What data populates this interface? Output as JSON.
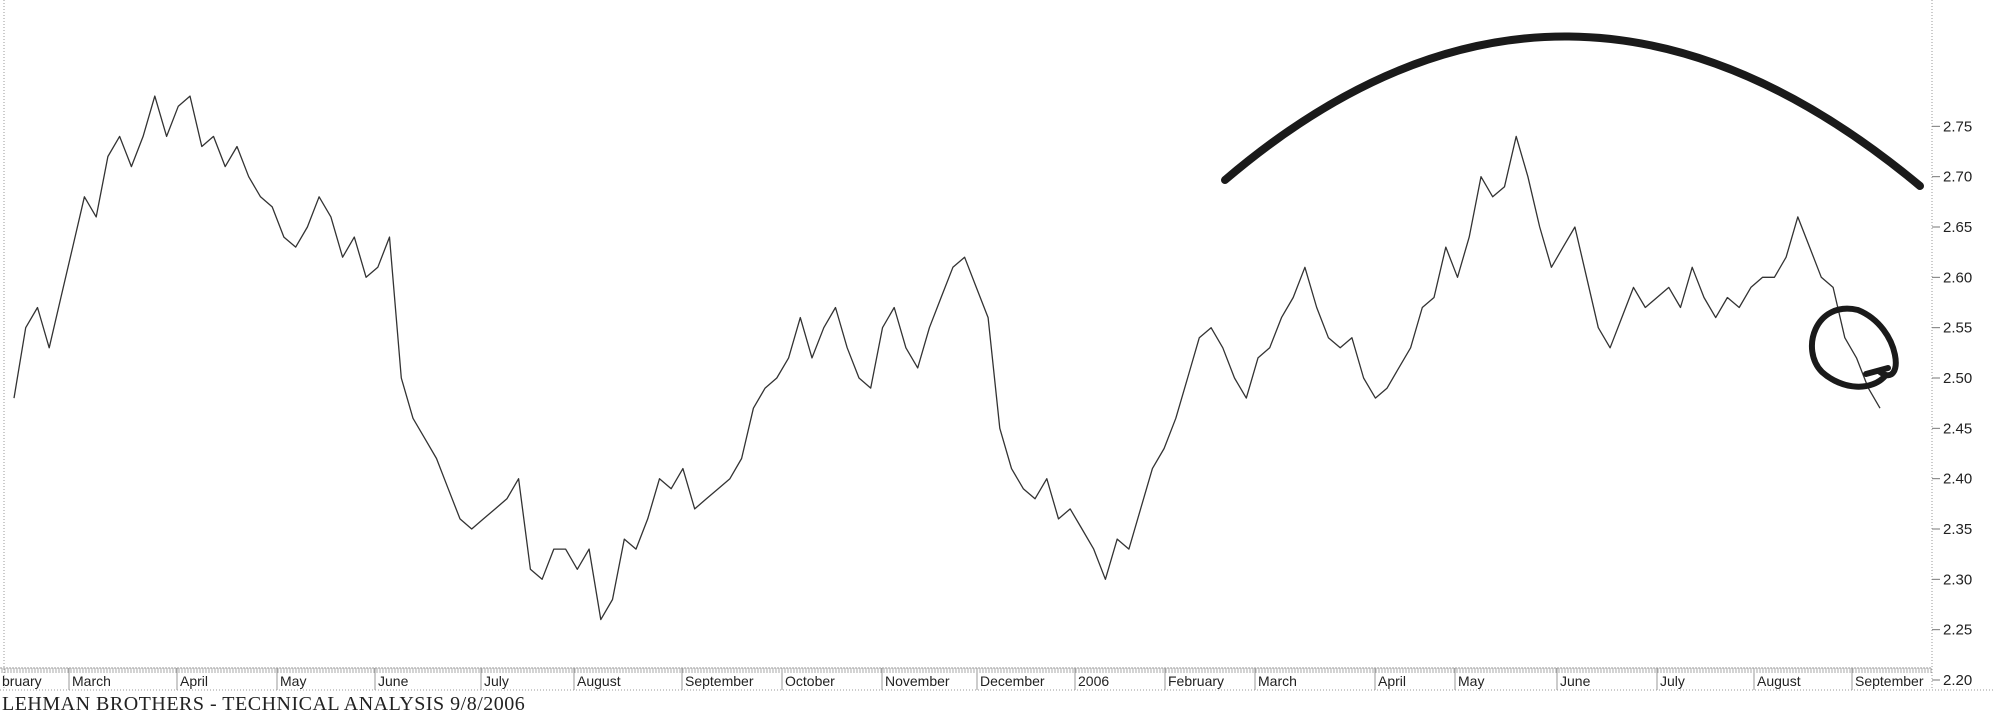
{
  "footer_text": "LEHMAN BROTHERS - TECHNICAL ANALYSIS 9/8/2006",
  "chart_data": {
    "type": "line",
    "title": "",
    "xlabel": "",
    "ylabel": "",
    "ylim": [
      2.2,
      2.8
    ],
    "y_axis_position": "right",
    "grid": false,
    "y_ticks": [
      "2.20",
      "2.25",
      "2.30",
      "2.35",
      "2.40",
      "2.45",
      "2.50",
      "2.55",
      "2.60",
      "2.65",
      "2.70",
      "2.75"
    ],
    "x_labels": [
      "bruary",
      "March",
      "April",
      "May",
      "June",
      "July",
      "August",
      "September",
      "October",
      "November",
      "December",
      "2006",
      "February",
      "March",
      "April",
      "May",
      "June",
      "July",
      "August",
      "September"
    ],
    "line_color": "#333333",
    "annotation_color": "#1a1a1a",
    "series": [
      {
        "values": [
          2.48,
          2.55,
          2.57,
          2.53,
          2.58,
          2.63,
          2.68,
          2.66,
          2.72,
          2.74,
          2.71,
          2.74,
          2.78,
          2.74,
          2.77,
          2.78,
          2.73,
          2.74,
          2.71,
          2.73,
          2.7,
          2.68,
          2.67,
          2.64,
          2.63,
          2.65,
          2.68,
          2.66,
          2.62,
          2.64,
          2.6,
          2.61,
          2.64,
          2.5,
          2.46,
          2.44,
          2.42,
          2.39,
          2.36,
          2.35,
          2.36,
          2.37,
          2.38,
          2.4,
          2.31,
          2.3,
          2.33,
          2.33,
          2.31,
          2.33,
          2.26,
          2.28,
          2.34,
          2.33,
          2.36,
          2.4,
          2.39,
          2.41,
          2.37,
          2.38,
          2.39,
          2.4,
          2.42,
          2.47,
          2.49,
          2.5,
          2.52,
          2.56,
          2.52,
          2.55,
          2.57,
          2.53,
          2.5,
          2.49,
          2.55,
          2.57,
          2.53,
          2.51,
          2.55,
          2.58,
          2.61,
          2.62,
          2.59,
          2.56,
          2.45,
          2.41,
          2.39,
          2.38,
          2.4,
          2.36,
          2.37,
          2.35,
          2.33,
          2.3,
          2.34,
          2.33,
          2.37,
          2.41,
          2.43,
          2.46,
          2.5,
          2.54,
          2.55,
          2.53,
          2.5,
          2.48,
          2.52,
          2.53,
          2.56,
          2.58,
          2.61,
          2.57,
          2.54,
          2.53,
          2.54,
          2.5,
          2.48,
          2.49,
          2.51,
          2.53,
          2.57,
          2.58,
          2.63,
          2.6,
          2.64,
          2.7,
          2.68,
          2.69,
          2.74,
          2.7,
          2.65,
          2.61,
          2.63,
          2.65,
          2.6,
          2.55,
          2.53,
          2.56,
          2.59,
          2.57,
          2.58,
          2.59,
          2.57,
          2.61,
          2.58,
          2.56,
          2.58,
          2.57,
          2.59,
          2.6,
          2.6,
          2.62,
          2.66,
          2.63,
          2.6,
          2.59,
          2.54,
          2.52,
          2.49,
          2.47
        ]
      }
    ]
  }
}
